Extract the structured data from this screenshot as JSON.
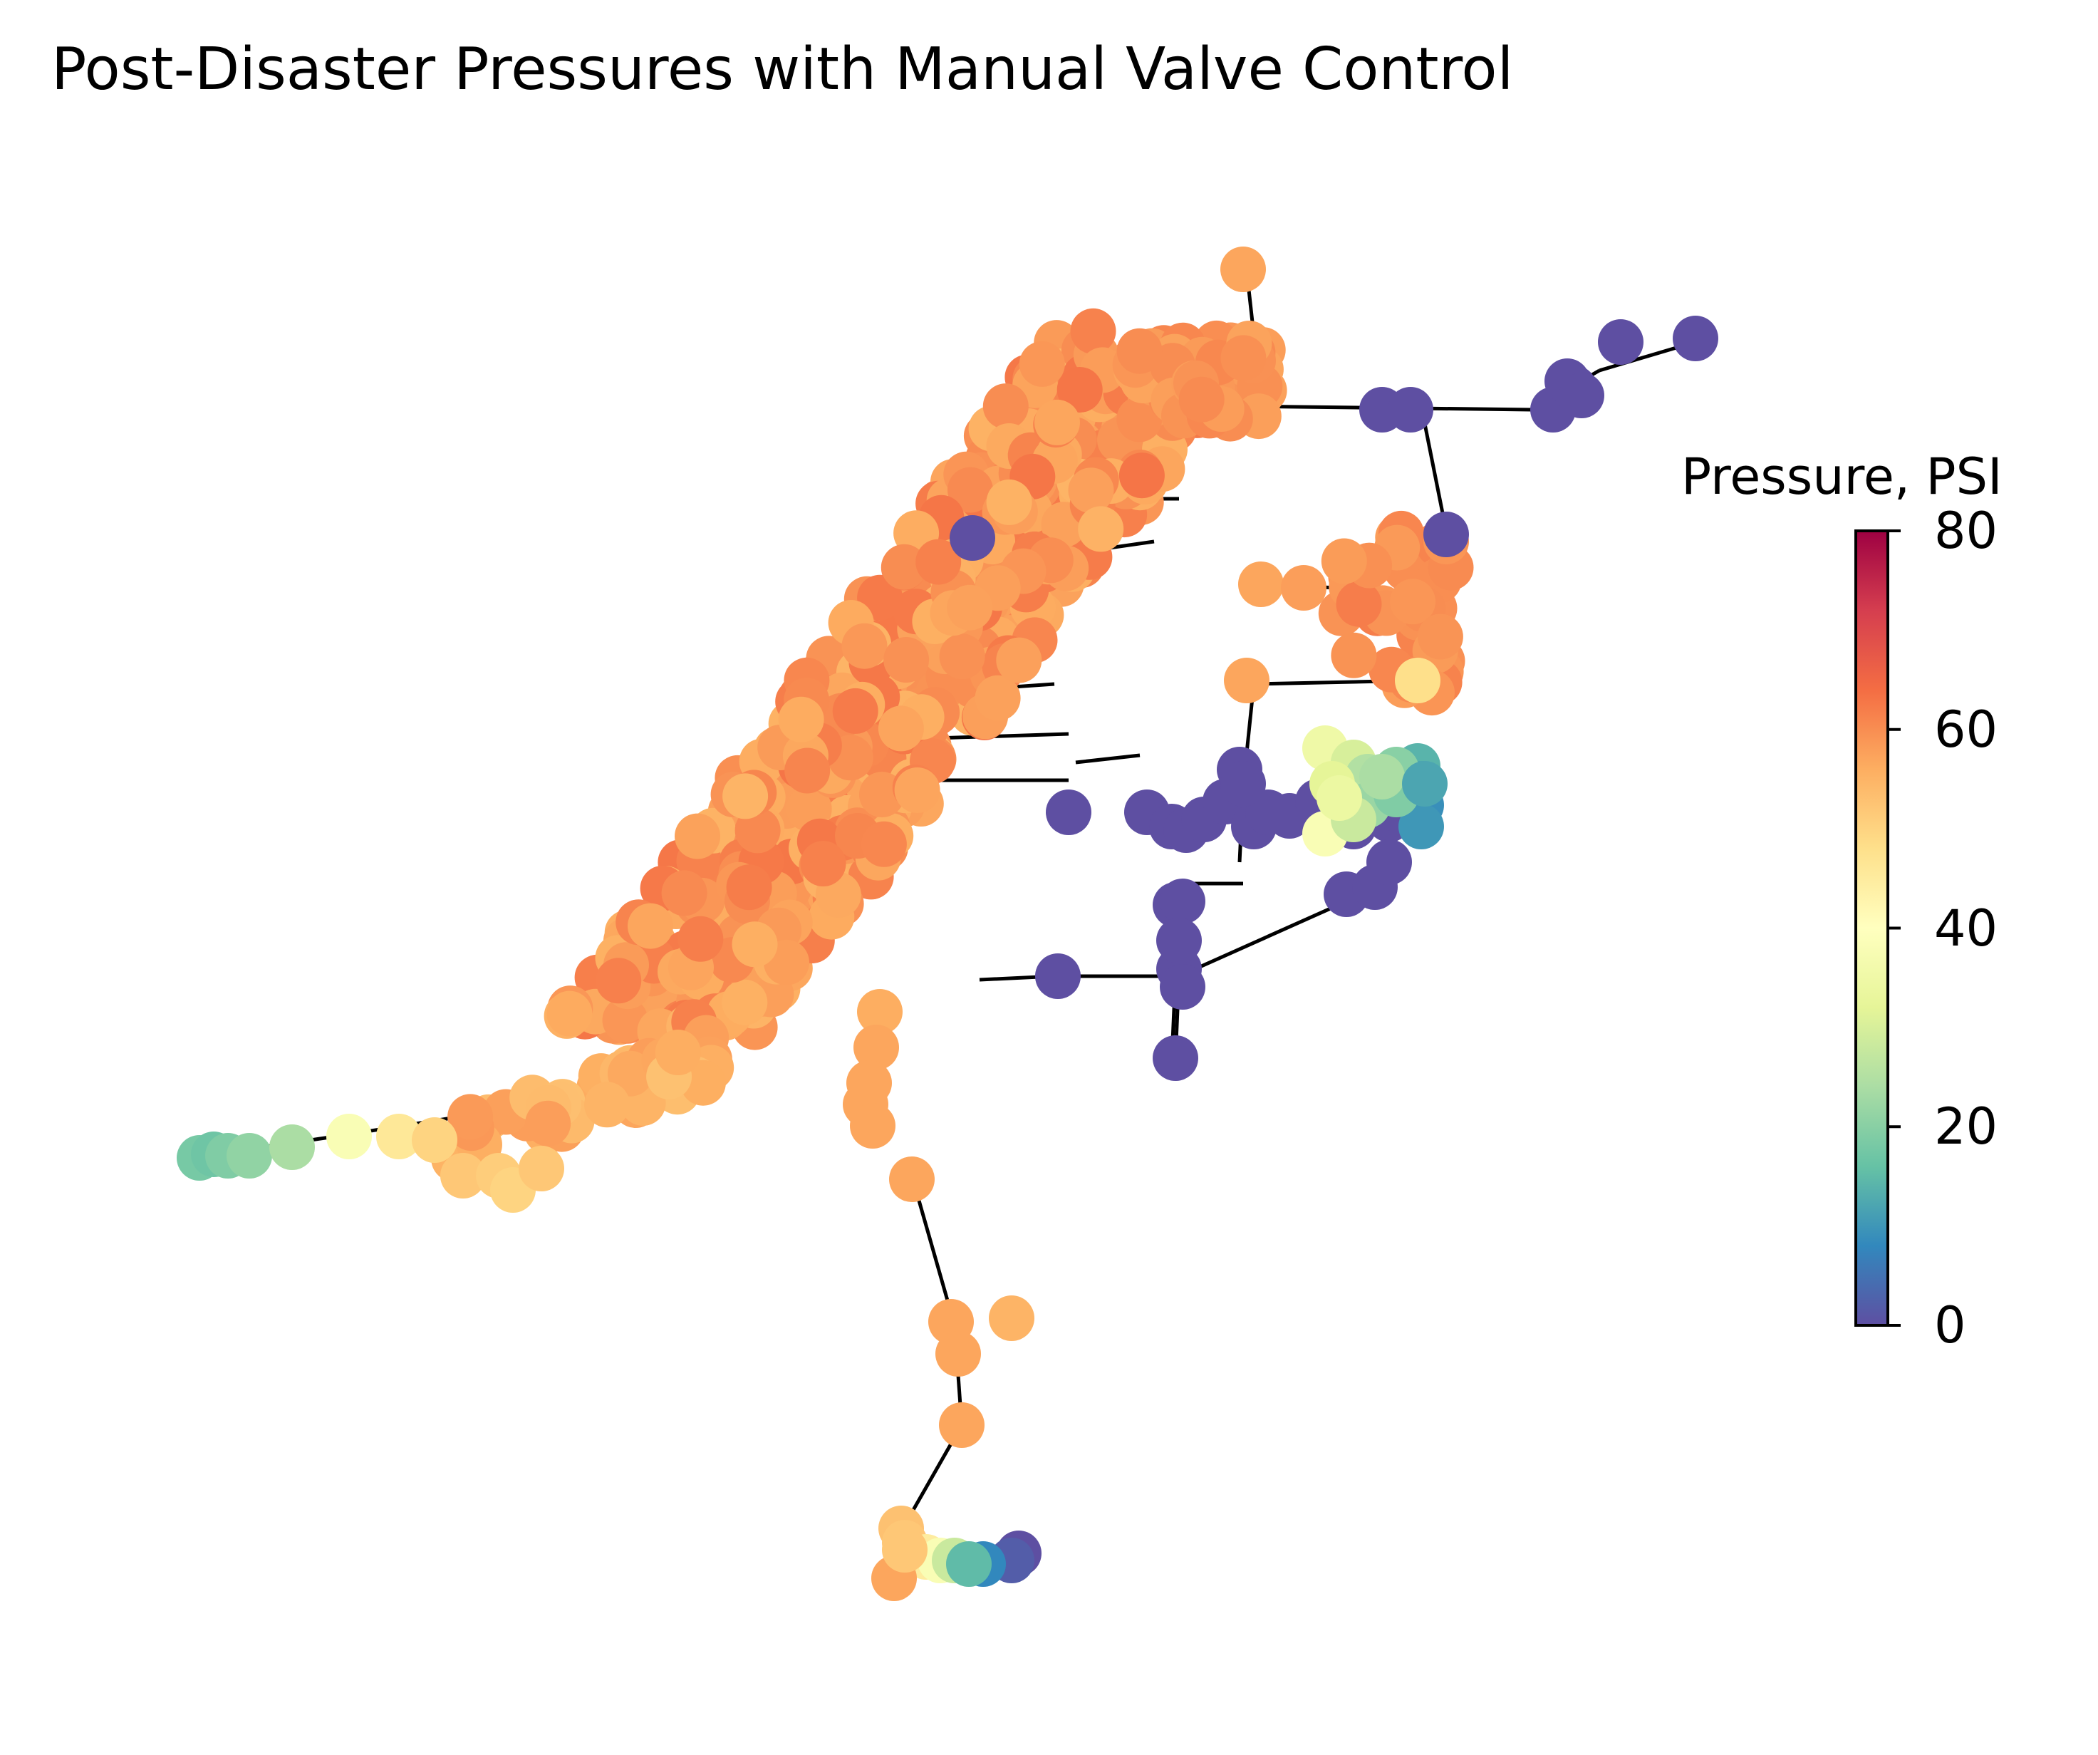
{
  "title": "Post-Disaster Pressures with Manual Valve Control",
  "colorbar": {
    "label": "Pressure, PSI",
    "min": 0,
    "max": 80,
    "ticks": [
      "0",
      "20",
      "40",
      "60",
      "80"
    ],
    "colormap": "Spectral_r",
    "stops": [
      "#5e4fa2",
      "#3288bd",
      "#66c2a5",
      "#abdda4",
      "#e6f598",
      "#ffffbf",
      "#fee08b",
      "#fdae61",
      "#f46d43",
      "#d53e4f",
      "#9e0142"
    ]
  },
  "edge_color": "#000000"
}
